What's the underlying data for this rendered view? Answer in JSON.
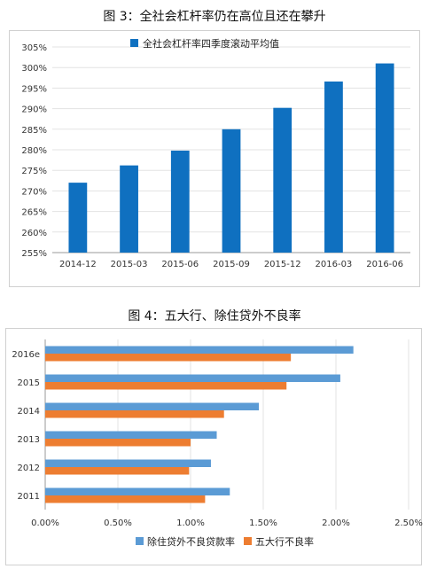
{
  "captions": {
    "fig3": "图 3：全社会杠杆率仍在高位且还在攀升",
    "fig4": "图 4：五大行、除住贷外不良率"
  },
  "chart_data": [
    {
      "type": "bar",
      "title": "图 3：全社会杠杆率仍在高位且还在攀升",
      "categories": [
        "2014-12",
        "2015-03",
        "2015-06",
        "2015-09",
        "2015-12",
        "2016-03",
        "2016-06"
      ],
      "series": [
        {
          "name": "全社会杠杆率四季度滚动平均值",
          "values": [
            272.0,
            276.2,
            279.8,
            285.0,
            290.2,
            296.6,
            301.0
          ],
          "color": "#0f70c0"
        }
      ],
      "ylim": [
        255,
        305
      ],
      "yticks": [
        "255%",
        "260%",
        "265%",
        "270%",
        "275%",
        "280%",
        "285%",
        "290%",
        "295%",
        "300%",
        "305%"
      ],
      "ytick_values": [
        255,
        260,
        265,
        270,
        275,
        280,
        285,
        290,
        295,
        300,
        305
      ],
      "grid": true,
      "legend_position": "top-left"
    },
    {
      "type": "bar",
      "orientation": "horizontal",
      "title": "图 4：五大行、除住贷外不良率",
      "categories": [
        "2016e",
        "2015",
        "2014",
        "2013",
        "2012",
        "2011"
      ],
      "series": [
        {
          "name": "除住贷外不良贷款率",
          "values": [
            2.12,
            2.03,
            1.47,
            1.18,
            1.14,
            1.27
          ],
          "color": "#5b9bd5"
        },
        {
          "name": "五大行不良率",
          "values": [
            1.69,
            1.66,
            1.23,
            1.0,
            0.99,
            1.1
          ],
          "color": "#ed7d31"
        }
      ],
      "xlim": [
        0,
        2.5
      ],
      "xticks": [
        "0.00%",
        "0.50%",
        "1.00%",
        "1.50%",
        "2.00%",
        "2.50%"
      ],
      "xtick_values": [
        0,
        0.5,
        1.0,
        1.5,
        2.0,
        2.5
      ],
      "grid": true,
      "legend_position": "bottom"
    }
  ]
}
